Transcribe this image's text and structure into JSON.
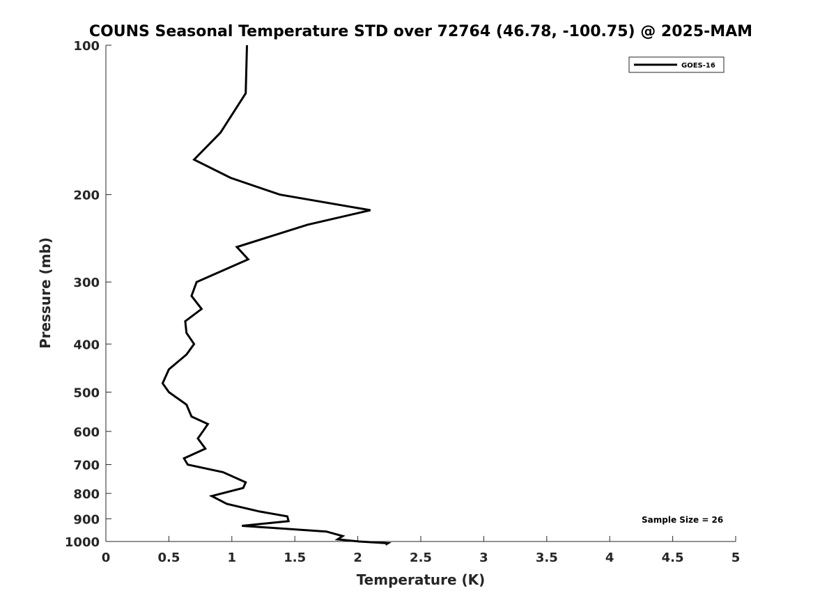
{
  "chart_data": {
    "type": "line",
    "title": "COUNS Seasonal Temperature STD over 72764 (46.78, -100.75) @ 2025-MAM",
    "xlabel": "Temperature (K)",
    "ylabel": "Pressure (mb)",
    "xlim": [
      0,
      5
    ],
    "ylim": [
      100,
      1000
    ],
    "y_scale": "log",
    "y_reversed": true,
    "x_ticks": [
      "0",
      "0.5",
      "1",
      "1.5",
      "2",
      "2.5",
      "3",
      "3.5",
      "4",
      "4.5",
      "5"
    ],
    "y_ticks": [
      "100",
      "200",
      "300",
      "400",
      "500",
      "600",
      "700",
      "800",
      "900",
      "1000"
    ],
    "grid": false,
    "legend_position": "top-right",
    "annotation": "Sample Size = 26",
    "series": [
      {
        "name": "GOES-16",
        "color": "#000000",
        "points": [
          [
            1.12,
            100
          ],
          [
            1.11,
            125
          ],
          [
            0.91,
            150
          ],
          [
            0.7,
            170
          ],
          [
            0.99,
            185
          ],
          [
            1.38,
            200
          ],
          [
            2.1,
            215
          ],
          [
            1.6,
            230
          ],
          [
            1.04,
            255
          ],
          [
            1.13,
            270
          ],
          [
            0.72,
            300
          ],
          [
            0.68,
            320
          ],
          [
            0.76,
            340
          ],
          [
            0.63,
            360
          ],
          [
            0.64,
            380
          ],
          [
            0.7,
            400
          ],
          [
            0.64,
            420
          ],
          [
            0.5,
            450
          ],
          [
            0.45,
            480
          ],
          [
            0.5,
            500
          ],
          [
            0.64,
            530
          ],
          [
            0.68,
            560
          ],
          [
            0.81,
            580
          ],
          [
            0.77,
            600
          ],
          [
            0.73,
            620
          ],
          [
            0.79,
            650
          ],
          [
            0.62,
            680
          ],
          [
            0.65,
            700
          ],
          [
            0.93,
            725
          ],
          [
            1.11,
            760
          ],
          [
            1.09,
            780
          ],
          [
            0.84,
            810
          ],
          [
            0.96,
            840
          ],
          [
            1.22,
            870
          ],
          [
            1.44,
            890
          ],
          [
            1.45,
            910
          ],
          [
            1.08,
            930
          ],
          [
            1.75,
            955
          ],
          [
            1.88,
            975
          ],
          [
            1.84,
            990
          ],
          [
            2.01,
            1000
          ],
          [
            2.24,
            1008
          ],
          [
            2.22,
            1015
          ]
        ]
      }
    ]
  }
}
